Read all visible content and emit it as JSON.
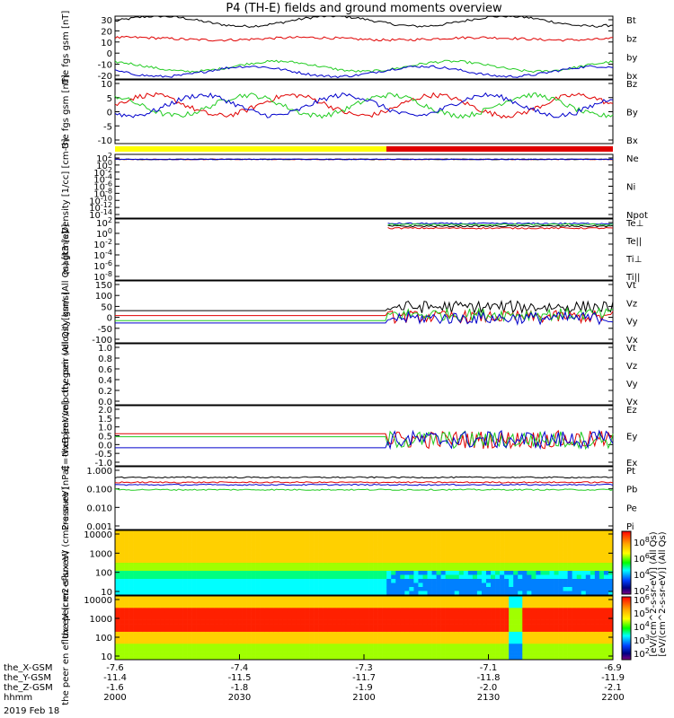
{
  "title": "P4 (TH-E) fields and ground moments overview",
  "date": "2019 Feb 18",
  "colors": {
    "black": "#000000",
    "red": "#e00000",
    "green": "#22cc22",
    "blue": "#0000cc",
    "yellow": "#ffff00"
  },
  "mode_bar": {
    "colors": [
      "#ffff00",
      "#e00000"
    ],
    "switch_hhmm": "2105"
  },
  "x_axis": {
    "rows": [
      {
        "label": "the_X-GSM",
        "values": [
          "-7.6",
          "-7.4",
          "-7.3",
          "-7.1",
          "-6.9"
        ]
      },
      {
        "label": "the_Y-GSM",
        "values": [
          "-11.4",
          "-11.5",
          "-11.7",
          "-11.8",
          "-11.9"
        ]
      },
      {
        "label": "the_Z-GSM",
        "values": [
          "-1.6",
          "-1.8",
          "-1.9",
          "-2.0",
          "-2.1"
        ]
      },
      {
        "label": "hhmm",
        "values": [
          "2000",
          "2030",
          "2100",
          "2130",
          "2200"
        ]
      }
    ]
  },
  "colorbar": {
    "label": "[eV/(cm^2-s-sr-eV)] (All Qs)",
    "label_lines": [
      "[eV/(cm^2-s-sr-eV)] (All Qs)",
      "[eV/(cm^2-s-sr-eV)] (All Qs)"
    ],
    "ticks_top": [
      "10^8",
      "10^6",
      "10^4",
      "10^2"
    ],
    "ticks_bottom": [
      "10^6",
      "10^5",
      "10^4",
      "10^3",
      "10^2"
    ]
  },
  "chart_data": [
    {
      "type": "line",
      "ylabel": "the fgs gsm [nT]",
      "ylim": [
        -20,
        30
      ],
      "yticks": [
        "30",
        "20",
        "10",
        "0",
        "-10",
        "-20"
      ],
      "series": [
        {
          "name": "Bt",
          "color": "#000000"
        },
        {
          "name": "bz",
          "color": "#e00000"
        },
        {
          "name": "by",
          "color": "#22cc22"
        },
        {
          "name": "bx",
          "color": "#0000cc"
        }
      ]
    },
    {
      "type": "line",
      "ylabel": "the fgs gsm [nT]",
      "ylim": [
        -15,
        10
      ],
      "yticks": [
        "10",
        "5",
        "0",
        "-5",
        "-10"
      ],
      "series": [
        {
          "name": "Bz",
          "color": "#e00000"
        },
        {
          "name": "By",
          "color": "#22cc22"
        },
        {
          "name": "Bx",
          "color": "#0000cc"
        }
      ]
    },
    {
      "type": "line",
      "ylabel": "Density [1/cc] [cm-3]",
      "ylim": [
        1e-15,
        1000.0
      ],
      "yticks": [
        "10^2",
        "10^0",
        "10^-2",
        "10^-4",
        "10^-6",
        "10^-8",
        "10^-10",
        "10^-12",
        "10^-14"
      ],
      "series": [
        {
          "name": "Ne",
          "color": "#e00000"
        },
        {
          "name": "Ni",
          "color": "#000000"
        },
        {
          "name": "Npot",
          "color": "#0000cc"
        }
      ]
    },
    {
      "type": "line",
      "ylabel": "magt3 [eV]",
      "ylim": [
        1e-09,
        1000.0
      ],
      "yticks": [
        "10^2",
        "10^0",
        "10^-2",
        "10^-4",
        "10^-6",
        "10^-8"
      ],
      "series": [
        {
          "name": "Te⊥",
          "color": "#e00000"
        },
        {
          "name": "Te||",
          "color": "#000000"
        },
        {
          "name": "Ti⊥",
          "color": "#0000cc"
        },
        {
          "name": "Ti||",
          "color": "#22cc22"
        }
      ]
    },
    {
      "type": "line",
      "ylabel": "the peir velocity gsm (All Qs) [km/s]",
      "ylim": [
        -100,
        150
      ],
      "yticks": [
        "150",
        "100",
        "50",
        "0",
        "-50",
        "-100"
      ],
      "series": [
        {
          "name": "Vt",
          "color": "#000000"
        },
        {
          "name": "Vz",
          "color": "#e00000"
        },
        {
          "name": "Vy",
          "color": "#22cc22"
        },
        {
          "name": "Vx",
          "color": "#0000cc"
        }
      ]
    },
    {
      "type": "line",
      "ylabel": "the peer velocity gsm (All Qs) [km/s]",
      "ylim": [
        0,
        1
      ],
      "yticks": [
        "1.0",
        "0.8",
        "0.6",
        "0.4",
        "0.2",
        "0.0"
      ],
      "series": [
        {
          "name": "Vt",
          "color": "#000000"
        },
        {
          "name": "Vz",
          "color": "#e00000"
        },
        {
          "name": "Vy",
          "color": "#22cc22"
        },
        {
          "name": "Vx",
          "color": "#0000cc"
        }
      ]
    },
    {
      "type": "line",
      "ylabel": "E=-VxB [mV/m]",
      "ylim": [
        -1,
        2
      ],
      "yticks": [
        "2.0",
        "1.5",
        "1.0",
        "0.5",
        "0.0",
        "-0.5",
        "-1.0"
      ],
      "series": [
        {
          "name": "Ez",
          "color": "#e00000"
        },
        {
          "name": "Ey",
          "color": "#22cc22"
        },
        {
          "name": "Ex",
          "color": "#0000cc"
        }
      ]
    },
    {
      "type": "line",
      "ylabel": "Pressure [nPa]",
      "ylim": [
        0.0003,
        2
      ],
      "yticks": [
        "1.000",
        "0.100",
        "0.010",
        "0.001"
      ],
      "series": [
        {
          "name": "Pt",
          "color": "#000000"
        },
        {
          "name": "Pb",
          "color": "#e00000"
        },
        {
          "name": "Pe",
          "color": "#22cc22"
        },
        {
          "name": "Pi",
          "color": "#0000cc"
        }
      ]
    },
    {
      "type": "heatmap",
      "ylabel": "the peir en eflux eV (cm2-s-sr-eV)",
      "ylim": [
        5,
        30000
      ],
      "yticks": [
        "10000",
        "1000",
        "100",
        "10"
      ]
    },
    {
      "type": "heatmap",
      "ylabel": "the peer en eflux eV (cm2-s-sr-eV)",
      "ylim": [
        5,
        30000
      ],
      "yticks": [
        "10000",
        "1000",
        "100",
        "10"
      ]
    }
  ]
}
